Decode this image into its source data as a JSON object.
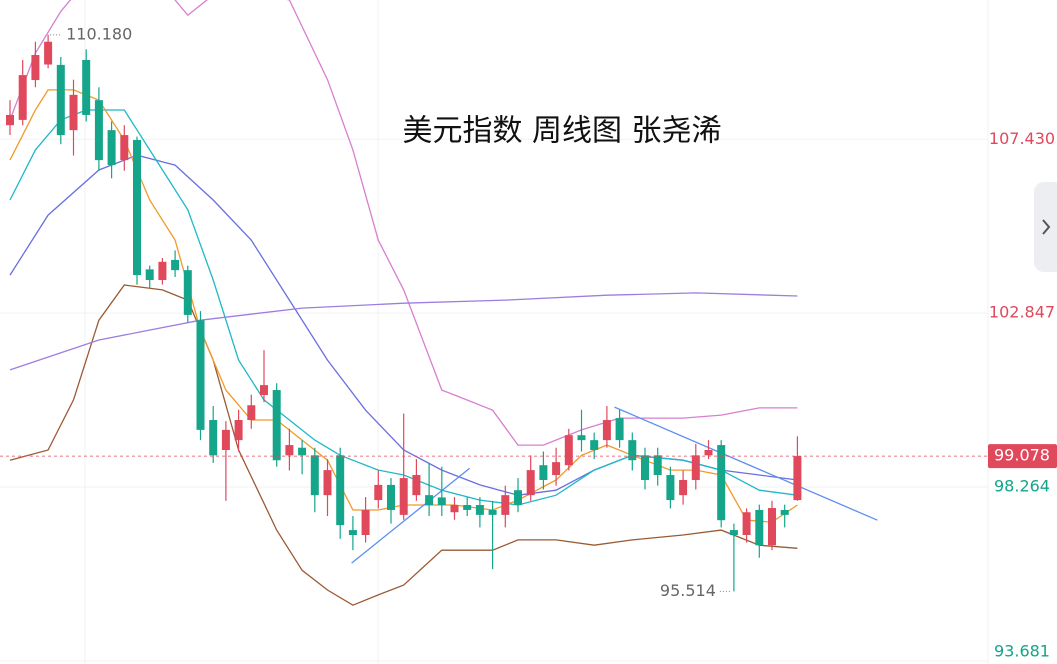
{
  "chart_data": {
    "type": "candlestick",
    "title": "美元指数 周线图 张尧浠",
    "up_color": "#e0485c",
    "down_color": "#14a58a",
    "open": [
      107.8,
      107.94,
      108.99,
      109.4,
      109.39,
      107.67,
      109.52,
      108.46,
      107.67,
      106.88,
      107.41,
      104.0,
      103.72,
      104.25,
      103.98,
      102.66,
      100.03,
      99.24,
      99.5,
      100.03,
      100.69,
      100.82,
      99.1,
      99.3,
      99.1,
      98.05,
      99.1,
      97.13,
      97.0,
      97.92,
      98.32,
      97.53,
      98.05,
      98.05,
      97.99,
      97.6,
      97.79,
      97.79,
      97.66,
      97.53,
      98.18,
      98.05,
      98.84,
      98.58,
      98.84,
      99.63,
      99.5,
      99.5,
      100.08,
      99.5,
      99.1,
      99.1,
      98.58,
      98.05,
      98.45,
      99.1,
      99.37,
      97.13,
      97.0,
      97.66,
      96.73,
      97.66,
      97.92
    ],
    "high": [
      108.46,
      109.52,
      110.0,
      110.18,
      109.6,
      109.0,
      109.8,
      108.8,
      107.9,
      107.8,
      107.5,
      104.1,
      104.3,
      104.5,
      104.1,
      102.9,
      100.4,
      100.0,
      100.3,
      100.7,
      101.87,
      101.0,
      99.8,
      99.5,
      99.3,
      99.0,
      99.3,
      97.5,
      98.0,
      98.7,
      98.5,
      100.2,
      99.0,
      98.9,
      98.8,
      98.0,
      98.0,
      98.0,
      97.9,
      98.3,
      98.5,
      99.1,
      99.2,
      99.3,
      99.8,
      100.3,
      99.7,
      100.4,
      100.3,
      99.7,
      99.3,
      99.3,
      98.8,
      98.7,
      99.4,
      99.5,
      99.5,
      97.3,
      97.7,
      97.8,
      97.9,
      97.8,
      99.6
    ],
    "low": [
      107.54,
      107.8,
      108.8,
      109.3,
      107.3,
      107.0,
      107.9,
      106.6,
      106.4,
      106.6,
      103.6,
      103.5,
      103.6,
      103.8,
      102.6,
      99.5,
      98.9,
      97.9,
      99.2,
      99.8,
      100.5,
      98.8,
      98.7,
      98.6,
      97.6,
      97.5,
      96.9,
      96.6,
      96.8,
      97.7,
      97.3,
      97.4,
      97.9,
      97.5,
      97.5,
      97.4,
      97.5,
      97.2,
      96.1,
      97.2,
      97.6,
      97.9,
      98.2,
      98.3,
      98.7,
      99.2,
      99.0,
      99.3,
      99.3,
      98.7,
      98.2,
      98.3,
      97.7,
      97.8,
      98.2,
      99.0,
      97.2,
      95.514,
      96.8,
      96.4,
      96.6,
      97.2,
      97.9
    ],
    "close": [
      108.07,
      109.12,
      109.65,
      110.0,
      107.54,
      108.6,
      108.07,
      106.88,
      106.75,
      107.54,
      103.85,
      103.72,
      104.2,
      103.98,
      102.8,
      99.77,
      99.1,
      99.77,
      100.03,
      100.42,
      100.95,
      98.97,
      99.37,
      99.1,
      98.05,
      98.71,
      97.26,
      97.0,
      97.66,
      98.32,
      97.66,
      98.5,
      98.58,
      97.79,
      97.79,
      97.79,
      97.66,
      97.53,
      97.53,
      98.05,
      97.79,
      98.71,
      98.45,
      98.92,
      99.63,
      99.5,
      99.24,
      100.03,
      99.5,
      98.97,
      98.45,
      98.58,
      97.92,
      98.45,
      99.1,
      99.24,
      97.39,
      97.0,
      97.6,
      96.73,
      97.71,
      97.53,
      99.078
    ],
    "overlays": [
      {
        "color": "#d77fd0",
        "x": [
          0,
          2,
          4,
          6,
          10,
          12,
          14,
          17,
          22,
          25,
          27,
          29,
          31,
          34,
          35,
          38,
          40,
          42,
          45,
          48,
          53,
          56,
          59,
          62
        ],
        "values": [
          107.94,
          109.7,
          110.8,
          111.6,
          112.3,
          111.5,
          110.7,
          111.5,
          111.1,
          109.0,
          107.15,
          104.77,
          103.46,
          100.82,
          100.69,
          100.29,
          99.37,
          99.37,
          99.77,
          100.08,
          100.08,
          100.16,
          100.35,
          100.35
        ]
      },
      {
        "color": "#9a5a34",
        "x": [
          0,
          3,
          5,
          7,
          9,
          12,
          14,
          16,
          18,
          21,
          23,
          25,
          27,
          29,
          31,
          34,
          36,
          38,
          40,
          43,
          46,
          49,
          53,
          56,
          59,
          62
        ],
        "values": [
          98.97,
          99.24,
          100.56,
          102.66,
          103.59,
          103.46,
          103.19,
          101.61,
          99.24,
          97.13,
          96.07,
          95.55,
          95.15,
          95.42,
          95.68,
          96.6,
          96.6,
          96.6,
          96.87,
          96.87,
          96.73,
          96.87,
          97.0,
          97.13,
          96.73,
          96.65
        ]
      },
      {
        "color": "#6a6fe0",
        "x": [
          0,
          3,
          7,
          10,
          13,
          16,
          19,
          22,
          25,
          28,
          31,
          34,
          37,
          40,
          43,
          46,
          49,
          53,
          56,
          59,
          62
        ],
        "values": [
          103.85,
          105.43,
          106.62,
          107.01,
          106.75,
          105.83,
          104.77,
          103.19,
          101.61,
          100.29,
          99.24,
          98.71,
          98.32,
          98.05,
          98.18,
          98.71,
          99.1,
          98.97,
          98.71,
          98.58,
          98.45
        ]
      },
      {
        "color": "#1fb8c8",
        "x": [
          0,
          2,
          4,
          6,
          9,
          11,
          14,
          16,
          18,
          20,
          22,
          24,
          26,
          29,
          31,
          34,
          37,
          40,
          43,
          46,
          49,
          53,
          56,
          59,
          62
        ],
        "values": [
          105.83,
          107.15,
          107.94,
          108.2,
          108.2,
          107.15,
          105.57,
          103.72,
          101.61,
          100.56,
          100.03,
          99.5,
          99.1,
          98.71,
          98.58,
          98.18,
          97.92,
          97.79,
          98.05,
          98.71,
          99.1,
          98.97,
          98.71,
          98.18,
          98.05
        ]
      },
      {
        "color": "#f19a2a",
        "x": [
          0,
          2,
          3,
          5,
          7,
          9,
          11,
          13,
          15,
          17,
          19,
          21,
          23,
          25,
          27,
          29,
          31,
          33,
          35,
          38,
          40,
          43,
          45,
          47,
          49,
          52,
          54,
          56,
          58,
          60,
          62
        ],
        "values": [
          106.88,
          108.2,
          108.73,
          108.73,
          108.46,
          107.41,
          105.83,
          104.77,
          102.4,
          100.82,
          100.03,
          100.03,
          99.5,
          98.97,
          97.66,
          97.66,
          97.79,
          97.79,
          97.79,
          97.66,
          97.92,
          98.45,
          99.1,
          99.37,
          99.1,
          98.71,
          98.71,
          98.58,
          97.39,
          97.34,
          97.79
        ]
      },
      {
        "color": "#9c7ee0",
        "x": [
          0,
          7,
          15,
          23,
          31,
          39,
          47,
          54,
          62
        ],
        "values": [
          101.35,
          102.14,
          102.66,
          102.98,
          103.11,
          103.19,
          103.32,
          103.38,
          103.3
        ]
      },
      {
        "color": "#5b8ff0",
        "x": [
          26.9,
          36.2
        ],
        "values": [
          96.26,
          98.76
        ]
      },
      {
        "color": "#5b8ff0",
        "x": [
          47.6,
          68.3
        ],
        "values": [
          100.37,
          97.39
        ]
      }
    ],
    "ylim": [
      93.6,
      111.1
    ],
    "yticks": [
      {
        "value": 107.43,
        "label": "107.430"
      },
      {
        "value": 102.847,
        "label": "102.847"
      },
      {
        "value": 98.264,
        "label": "98.264"
      },
      {
        "value": 93.681,
        "label": "93.681"
      }
    ],
    "current_price": {
      "value": 99.078,
      "label": "99.078"
    },
    "annotations": [
      {
        "value": 110.18,
        "label": "110.180",
        "kind": "high"
      },
      {
        "value": 95.514,
        "label": "95.514",
        "kind": "low"
      }
    ],
    "grid": true
  }
}
